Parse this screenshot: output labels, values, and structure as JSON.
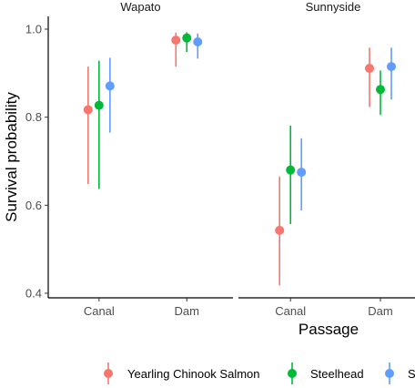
{
  "chart_data": {
    "type": "scatter",
    "subtype": "point-range (faceted)",
    "ylabel": "Survival probability",
    "xlabel": "Passage",
    "ylim": [
      0.4,
      1.0
    ],
    "yticks": [
      0.4,
      0.6,
      0.8,
      1.0
    ],
    "yticklabels": [
      "0.4",
      "0.6",
      "0.8",
      "1.0"
    ],
    "categories": [
      "Canal",
      "Dam"
    ],
    "grid": false,
    "legend_position": "bottom",
    "colors": [
      "#F8766D",
      "#00BA38",
      "#619CFF"
    ],
    "legend": [
      "Yearling Chinook Salmon",
      "Steelhead",
      "S"
    ],
    "panels": [
      {
        "title": "Wapato",
        "series": [
          {
            "values": [
              0.817,
              0.975
            ],
            "lower": [
              0.648,
              0.915
            ],
            "upper": [
              0.915,
              0.992
            ]
          },
          {
            "values": [
              0.827,
              0.98
            ],
            "lower": [
              0.637,
              0.948
            ],
            "upper": [
              0.928,
              0.993
            ]
          },
          {
            "values": [
              0.871,
              0.971
            ],
            "lower": [
              0.765,
              0.933
            ],
            "upper": [
              0.935,
              0.99
            ]
          }
        ]
      },
      {
        "title": "Sunnyside",
        "series": [
          {
            "values": [
              0.543,
              0.911
            ],
            "lower": [
              0.418,
              0.823
            ],
            "upper": [
              0.665,
              0.958
            ]
          },
          {
            "values": [
              0.68,
              0.863
            ],
            "lower": [
              0.557,
              0.805
            ],
            "upper": [
              0.781,
              0.906
            ]
          },
          {
            "values": [
              0.675,
              0.915
            ],
            "lower": [
              0.588,
              0.84
            ],
            "upper": [
              0.752,
              0.958
            ]
          }
        ]
      }
    ]
  }
}
